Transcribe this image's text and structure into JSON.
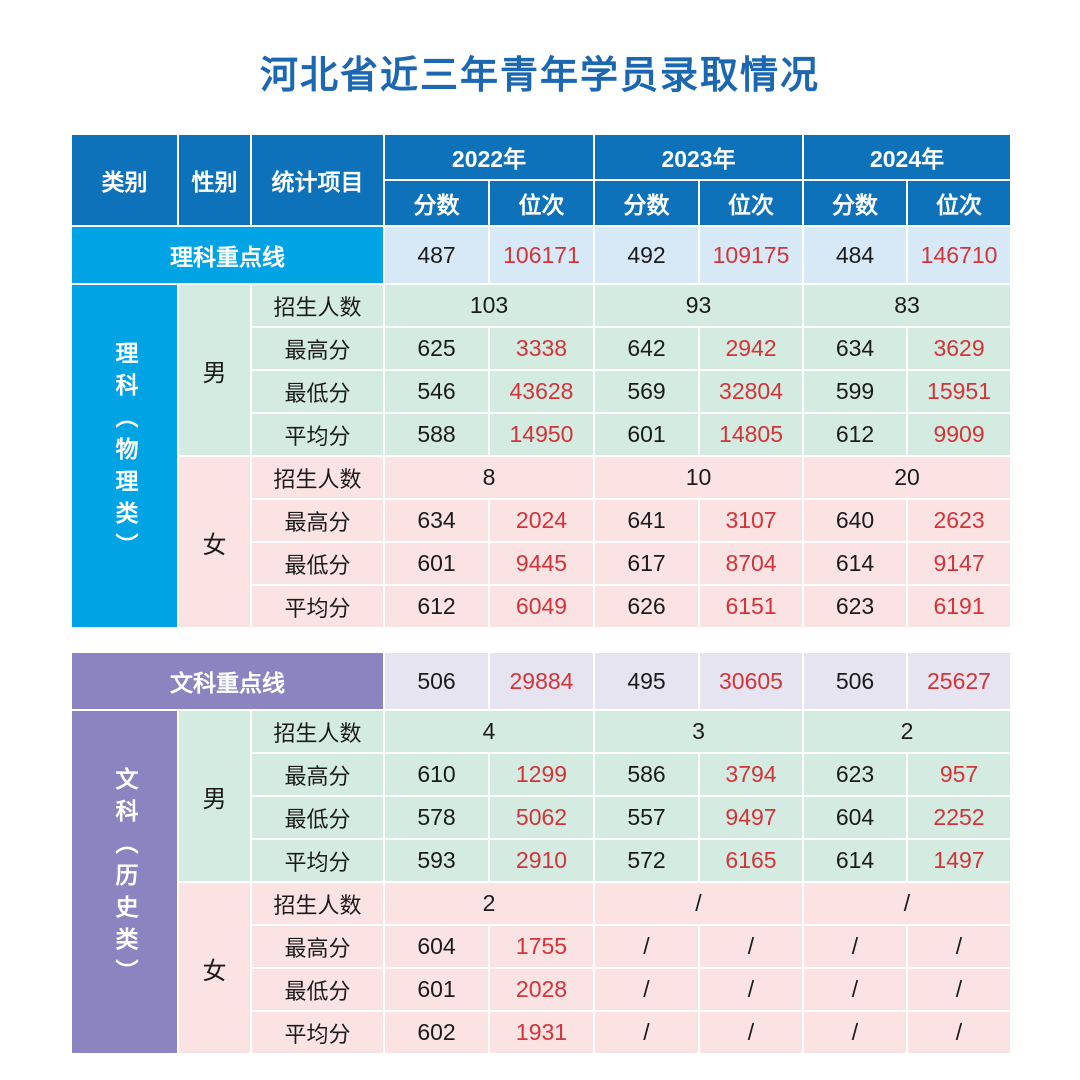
{
  "title": "河北省近三年青年学员录取情况",
  "header": {
    "category": "类别",
    "gender": "性别",
    "stat": "统计项目",
    "years": [
      "2022年",
      "2023年",
      "2024年"
    ],
    "score": "分数",
    "rank": "位次"
  },
  "stat_labels": [
    "招生人数",
    "最高分",
    "最低分",
    "平均分"
  ],
  "tables": [
    {
      "id": "science",
      "category_label": "理科（物理类）",
      "keyline": {
        "label": "理科重点线",
        "values": [
          "487",
          "106171",
          "492",
          "109175",
          "484",
          "146710"
        ]
      },
      "groups": [
        {
          "gender": "男",
          "enroll": [
            "103",
            "93",
            "83"
          ],
          "rows": [
            [
              "625",
              "3338",
              "642",
              "2942",
              "634",
              "3629"
            ],
            [
              "546",
              "43628",
              "569",
              "32804",
              "599",
              "15951"
            ],
            [
              "588",
              "14950",
              "601",
              "14805",
              "612",
              "9909"
            ]
          ]
        },
        {
          "gender": "女",
          "enroll": [
            "8",
            "10",
            "20"
          ],
          "rows": [
            [
              "634",
              "2024",
              "641",
              "3107",
              "640",
              "2623"
            ],
            [
              "601",
              "9445",
              "617",
              "8704",
              "614",
              "9147"
            ],
            [
              "612",
              "6049",
              "626",
              "6151",
              "623",
              "6191"
            ]
          ]
        }
      ]
    },
    {
      "id": "arts",
      "category_label": "文科（历史类）",
      "keyline": {
        "label": "文科重点线",
        "values": [
          "506",
          "29884",
          "495",
          "30605",
          "506",
          "25627"
        ]
      },
      "groups": [
        {
          "gender": "男",
          "enroll": [
            "4",
            "3",
            "2"
          ],
          "rows": [
            [
              "610",
              "1299",
              "586",
              "3794",
              "623",
              "957"
            ],
            [
              "578",
              "5062",
              "557",
              "9497",
              "604",
              "2252"
            ],
            [
              "593",
              "2910",
              "572",
              "6165",
              "614",
              "1497"
            ]
          ]
        },
        {
          "gender": "女",
          "enroll": [
            "2",
            "/",
            "/"
          ],
          "rows": [
            [
              "604",
              "1755",
              "/",
              "/",
              "/",
              "/"
            ],
            [
              "601",
              "2028",
              "/",
              "/",
              "/",
              "/"
            ],
            [
              "602",
              "1931",
              "/",
              "/",
              "/",
              "/"
            ]
          ]
        }
      ]
    }
  ],
  "colors": {
    "title_blue": "#1b67b2",
    "header_blue": "#0d72b9",
    "science_cyan": "#00a3e4",
    "arts_purple": "#8b84c0",
    "male_green_bg": "#d4ebe2",
    "female_pink_bg": "#fbe3e4",
    "science_keyline_bg": "#d7e9f7",
    "arts_keyline_bg": "#e7e4f1",
    "rank_red": "#d23438",
    "text_black": "#1b1b1b"
  },
  "chart_data": {
    "type": "table",
    "title": "河北省近三年青年学员录取情况",
    "columns": [
      "类别",
      "性别",
      "统计项目",
      "2022年分数",
      "2022年位次",
      "2023年分数",
      "2023年位次",
      "2024年分数",
      "2024年位次"
    ],
    "rows": [
      [
        "理科重点线",
        "",
        "",
        "487",
        "106171",
        "492",
        "109175",
        "484",
        "146710"
      ],
      [
        "理科（物理类）",
        "男",
        "招生人数",
        "103",
        "",
        "93",
        "",
        "83",
        ""
      ],
      [
        "",
        "",
        "最高分",
        "625",
        "3338",
        "642",
        "2942",
        "634",
        "3629"
      ],
      [
        "",
        "",
        "最低分",
        "546",
        "43628",
        "569",
        "32804",
        "599",
        "15951"
      ],
      [
        "",
        "",
        "平均分",
        "588",
        "14950",
        "601",
        "14805",
        "612",
        "9909"
      ],
      [
        "",
        "女",
        "招生人数",
        "8",
        "",
        "10",
        "",
        "20",
        ""
      ],
      [
        "",
        "",
        "最高分",
        "634",
        "2024",
        "641",
        "3107",
        "640",
        "2623"
      ],
      [
        "",
        "",
        "最低分",
        "601",
        "9445",
        "617",
        "8704",
        "614",
        "9147"
      ],
      [
        "",
        "",
        "平均分",
        "612",
        "6049",
        "626",
        "6151",
        "623",
        "6191"
      ],
      [
        "文科重点线",
        "",
        "",
        "506",
        "29884",
        "495",
        "30605",
        "506",
        "25627"
      ],
      [
        "文科（历史类）",
        "男",
        "招生人数",
        "4",
        "",
        "3",
        "",
        "2",
        ""
      ],
      [
        "",
        "",
        "最高分",
        "610",
        "1299",
        "586",
        "3794",
        "623",
        "957"
      ],
      [
        "",
        "",
        "最低分",
        "578",
        "5062",
        "557",
        "9497",
        "604",
        "2252"
      ],
      [
        "",
        "",
        "平均分",
        "593",
        "2910",
        "572",
        "6165",
        "614",
        "1497"
      ],
      [
        "",
        "女",
        "招生人数",
        "2",
        "",
        "/",
        "",
        "/",
        ""
      ],
      [
        "",
        "",
        "最高分",
        "604",
        "1755",
        "/",
        "/",
        "/",
        "/"
      ],
      [
        "",
        "",
        "最低分",
        "601",
        "2028",
        "/",
        "/",
        "/",
        "/"
      ],
      [
        "",
        "",
        "平均分",
        "602",
        "1931",
        "/",
        "/",
        "/",
        "/"
      ]
    ]
  }
}
